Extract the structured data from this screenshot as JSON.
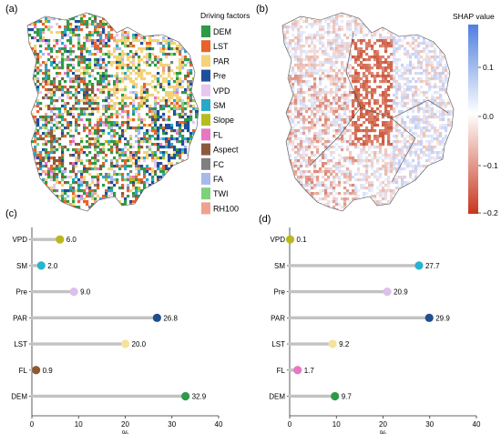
{
  "panels": {
    "a": {
      "label": "(a)",
      "legend_title": "Driving factors",
      "legend": [
        {
          "name": "DEM",
          "color": "#2e9a48"
        },
        {
          "name": "LST",
          "color": "#e8622c"
        },
        {
          "name": "PAR",
          "color": "#f3d27a"
        },
        {
          "name": "Pre",
          "color": "#1f4e9c"
        },
        {
          "name": "VPD",
          "color": "#e7c6f0"
        },
        {
          "name": "SM",
          "color": "#2aa8c9"
        },
        {
          "name": "Slope",
          "color": "#b5bd1e"
        },
        {
          "name": "FL",
          "color": "#e777c0"
        },
        {
          "name": "Aspect",
          "color": "#8b5a3c"
        },
        {
          "name": "FC",
          "color": "#7f7f7f"
        },
        {
          "name": "FA",
          "color": "#a9b9ea"
        },
        {
          "name": "TWI",
          "color": "#7fd07a"
        },
        {
          "name": "RH100",
          "color": "#f0a18f"
        }
      ]
    },
    "b": {
      "label": "(b)",
      "colorbar_title": "SHAP value",
      "colorbar_ticks": [
        "0.1",
        "0.0",
        "−0.1",
        "−0.2"
      ],
      "colorbar_colors": [
        "#4f7fe0",
        "#ffffff",
        "#c8361e"
      ]
    },
    "c": {
      "label": "(c)"
    },
    "d": {
      "label": "(d)"
    }
  },
  "chart_data": [
    {
      "panel": "c",
      "type": "bar",
      "orientation": "horizontal",
      "style": "lollipop",
      "categories": [
        "VPD",
        "SM",
        "Pre",
        "PAR",
        "LST",
        "FL",
        "DEM"
      ],
      "values": [
        6.0,
        2.0,
        9.0,
        26.8,
        20.0,
        0.9,
        32.9
      ],
      "value_labels": [
        "6.0",
        "2.0",
        "9.0",
        "26.8",
        "20.0",
        "0.9",
        "32.9"
      ],
      "colors": [
        "#b9b81e",
        "#28b3cf",
        "#dcc0ec",
        "#1e4f8f",
        "#f6e29e",
        "#8c5a2e",
        "#2e9a48"
      ],
      "xlabel": "%",
      "xlim": [
        0,
        40
      ],
      "xticks": [
        "0",
        "10",
        "20",
        "30",
        "40"
      ]
    },
    {
      "panel": "d",
      "type": "bar",
      "orientation": "horizontal",
      "style": "lollipop",
      "categories": [
        "VPD",
        "SM",
        "Pre",
        "PAR",
        "LST",
        "FL",
        "DEM"
      ],
      "values": [
        0.1,
        27.7,
        20.9,
        29.9,
        9.2,
        1.7,
        9.7
      ],
      "value_labels": [
        "0.1",
        "27.7",
        "20.9",
        "29.9",
        "9.2",
        "1.7",
        "9.7"
      ],
      "colors": [
        "#b9b81e",
        "#28b3cf",
        "#dcc0ec",
        "#1e4f8f",
        "#f6e29e",
        "#e777c0",
        "#2e9a48"
      ],
      "xlabel": "%",
      "xlim": [
        0,
        40
      ],
      "xticks": [
        "0",
        "10",
        "20",
        "30",
        "40"
      ]
    }
  ]
}
